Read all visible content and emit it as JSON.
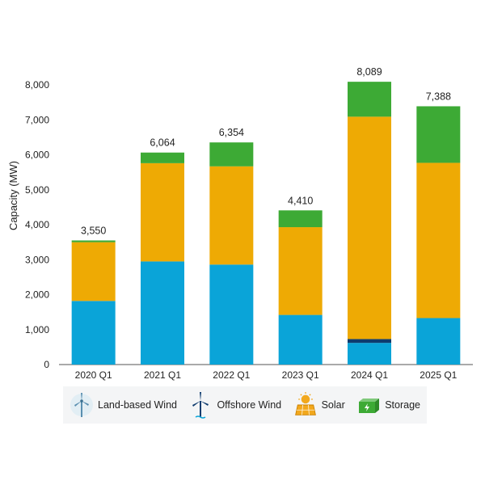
{
  "chart_data": {
    "type": "bar",
    "stacked": true,
    "ylabel": "Capacity (MW)",
    "ylim": [
      0,
      8000
    ],
    "yticks": [
      "0",
      "1,000",
      "2,000",
      "3,000",
      "4,000",
      "5,000",
      "6,000",
      "7,000",
      "8,000"
    ],
    "ytick_values": [
      0,
      1000,
      2000,
      3000,
      4000,
      5000,
      6000,
      7000,
      8000
    ],
    "grid": false,
    "legend_position": "bottom",
    "categories": [
      "2020 Q1",
      "2021 Q1",
      "2022 Q1",
      "2023 Q1",
      "2024 Q1",
      "2025 Q1"
    ],
    "totals": [
      "3,550",
      "6,064",
      "6,354",
      "4,410",
      "8,089",
      "7,388"
    ],
    "series": [
      {
        "name": "Land-based Wind",
        "color": "#0aa4d8",
        "values": [
          1820,
          2950,
          2860,
          1420,
          620,
          1330
        ]
      },
      {
        "name": "Offshore Wind",
        "color": "#0e3b6e",
        "values": [
          0,
          0,
          0,
          0,
          110,
          0
        ]
      },
      {
        "name": "Solar",
        "color": "#eeaa04",
        "values": [
          1680,
          2810,
          2810,
          2510,
          6360,
          4440
        ]
      },
      {
        "name": "Storage",
        "color": "#3daa35",
        "values": [
          50,
          304,
          684,
          480,
          999,
          1618
        ]
      }
    ]
  },
  "legend": {
    "items": [
      {
        "label": "Land-based Wind",
        "icon": "land-wind-turbine-icon"
      },
      {
        "label": "Offshore Wind",
        "icon": "offshore-wind-turbine-icon"
      },
      {
        "label": "Solar",
        "icon": "solar-panel-icon"
      },
      {
        "label": "Storage",
        "icon": "battery-storage-icon"
      }
    ]
  }
}
